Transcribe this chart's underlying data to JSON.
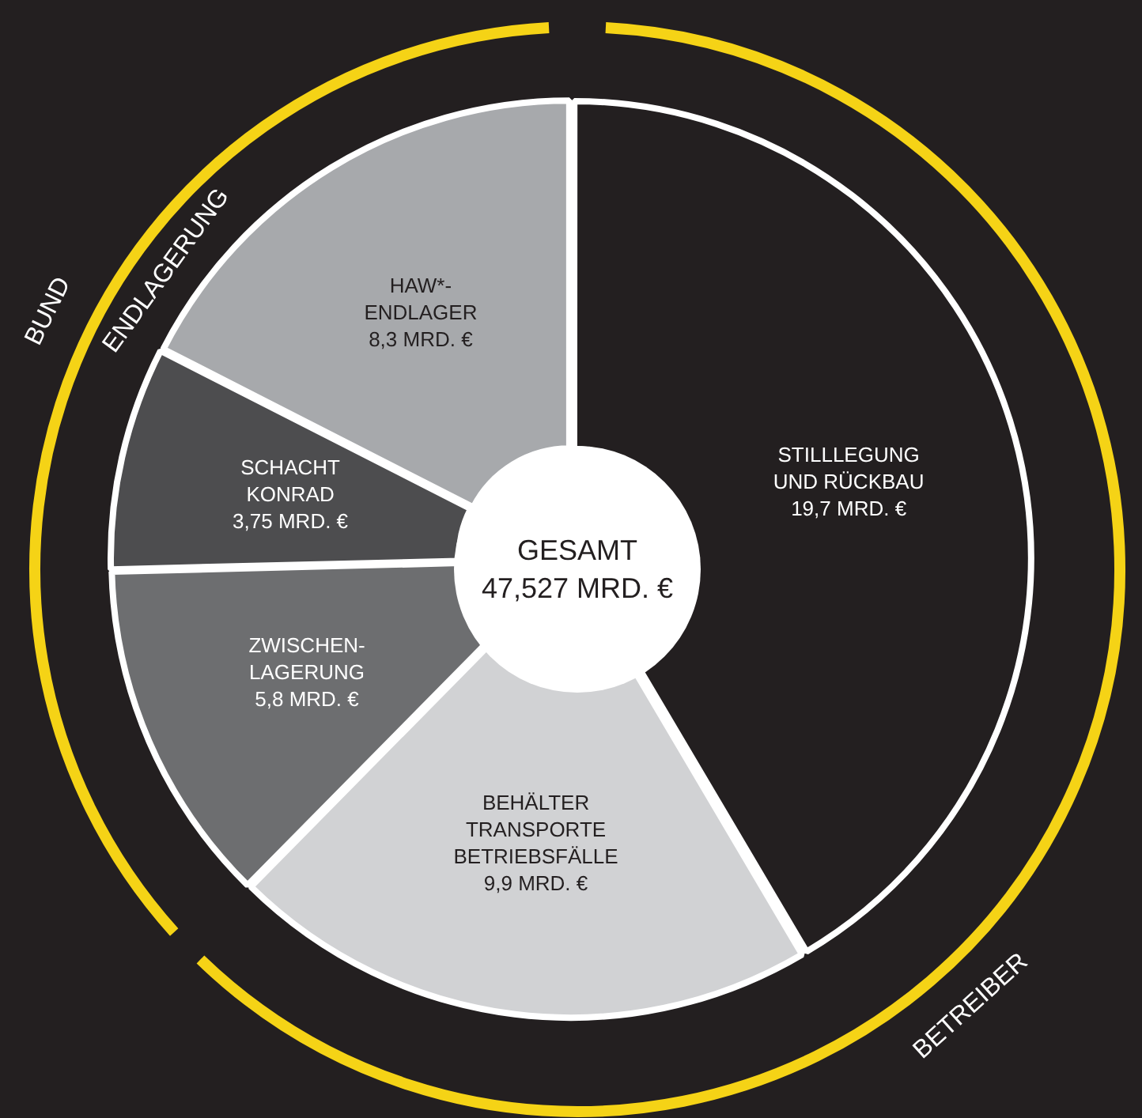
{
  "chart_data": {
    "type": "donut",
    "title": "GESAMT",
    "subtitle": "47,527 MRD. €",
    "categories": [
      "STILLLEGUNG\nUND RÜCKBAU",
      "BEHÄLTER\nTRANSPORTE\nBETRIEBSFÄLLE",
      "ZWISCHEN-\nLAGERUNG",
      "SCHACHT\nKONRAD",
      "HAW*-\nENDLAGER"
    ],
    "values": [
      19.7,
      9.9,
      5.8,
      3.75,
      8.3
    ],
    "value_labels": [
      "19,7 MRD. €",
      "9,9 MRD. €",
      "5,8 MRD. €",
      "3,75 MRD. €",
      "8,3 MRD. €"
    ],
    "colors": [
      "#231f20",
      "#d1d2d4",
      "#6d6e70",
      "#4d4d4f",
      "#a7a9ac"
    ],
    "annotations": [
      "BETREIBER",
      "BUND",
      "ENDLAGERUNG"
    ],
    "legend": false
  }
}
